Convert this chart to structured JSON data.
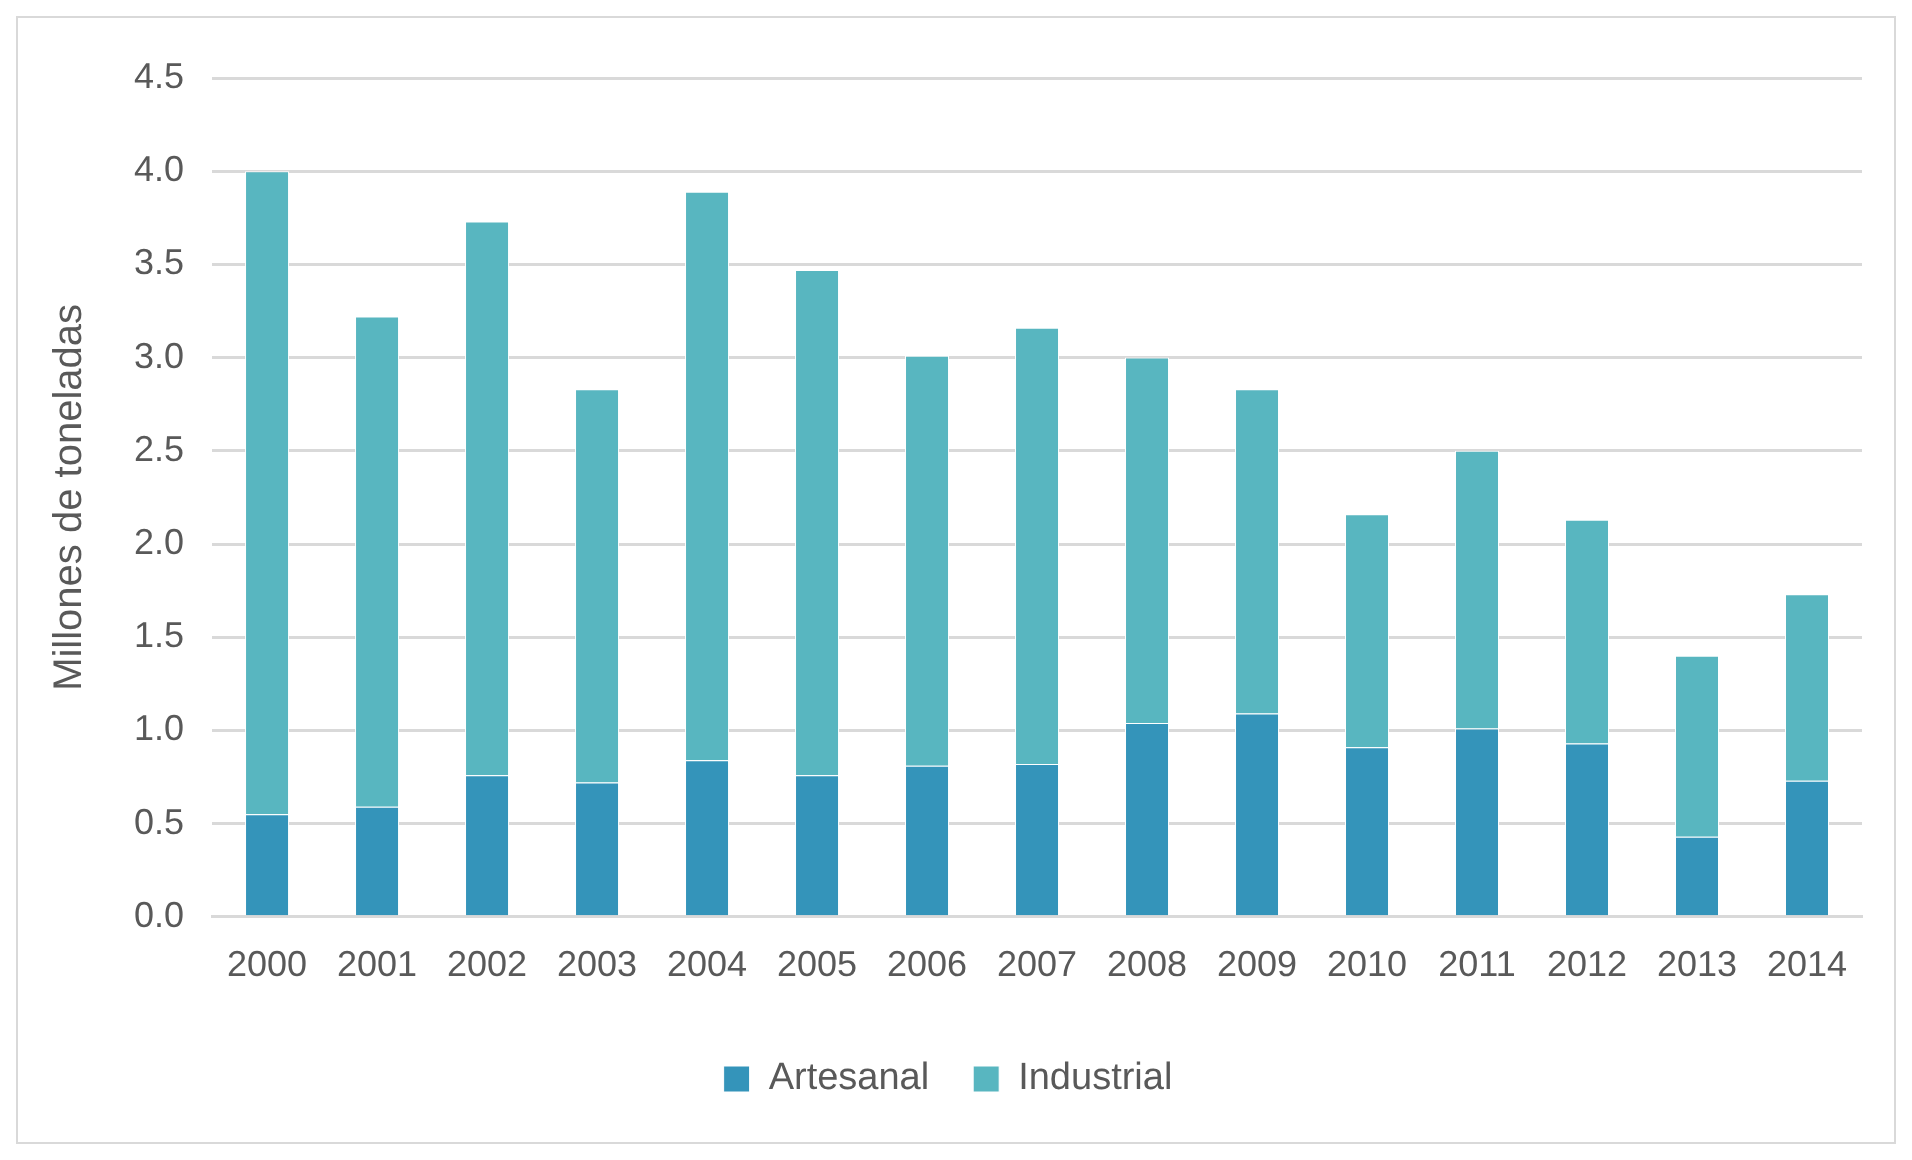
{
  "chart_data": {
    "type": "bar",
    "stacked": true,
    "ylabel": "Millones de toneladas",
    "categories": [
      "2000",
      "2001",
      "2002",
      "2003",
      "2004",
      "2005",
      "2006",
      "2007",
      "2008",
      "2009",
      "2010",
      "2011",
      "2012",
      "2013",
      "2014"
    ],
    "series": [
      {
        "name": "Artesanal",
        "color": "#3494ba",
        "values": [
          0.55,
          0.59,
          0.76,
          0.72,
          0.84,
          0.76,
          0.81,
          0.82,
          1.04,
          1.09,
          0.91,
          1.01,
          0.93,
          0.43,
          0.73
        ]
      },
      {
        "name": "Industrial",
        "color": "#58b6c0",
        "values": [
          3.45,
          2.63,
          2.97,
          2.11,
          3.05,
          2.71,
          2.2,
          2.34,
          1.96,
          1.74,
          1.25,
          1.49,
          1.2,
          0.97,
          1.0
        ]
      }
    ],
    "ylim": [
      0,
      4.5
    ],
    "yticks": [
      {
        "value": 0,
        "label": "0.0"
      },
      {
        "value": 0.5,
        "label": "0.5"
      },
      {
        "value": 1,
        "label": "1.0"
      },
      {
        "value": 1.5,
        "label": "1.5"
      },
      {
        "value": 2,
        "label": "2.0"
      },
      {
        "value": 2.5,
        "label": "2.5"
      },
      {
        "value": 3,
        "label": "3.0"
      },
      {
        "value": 3.5,
        "label": "3.5"
      },
      {
        "value": 4,
        "label": "4.0"
      },
      {
        "value": 4.5,
        "label": "4.5"
      }
    ],
    "grid": "y",
    "legend": "bottom"
  }
}
